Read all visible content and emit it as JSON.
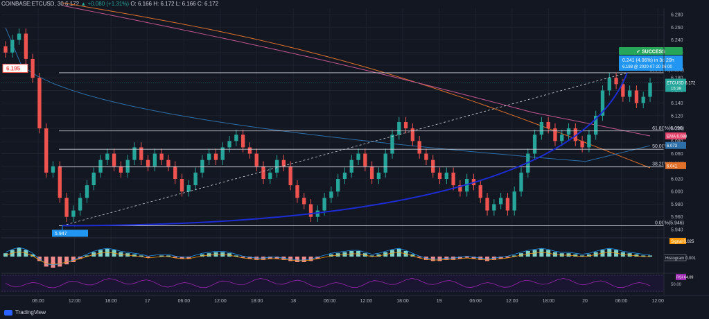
{
  "header": {
    "symbol": "COINBASE:ETCUSD, 30",
    "last": "6.172",
    "change": "+0.080 (+1.31%)",
    "ohlc": "O: 6.166  H: 6.172  L: 6.166  C: 6.172"
  },
  "footer": {
    "brand": "TradingView"
  },
  "colors": {
    "up": "#26a69a",
    "down": "#ef5350",
    "bg": "#131722",
    "accent": "#2962ff"
  },
  "chart_data": {
    "type": "candlestick",
    "symbol": "ETCUSD",
    "ylim": [
      5.93,
      6.29
    ],
    "yticks": [
      "6.280",
      "6.260",
      "6.240",
      "6.220",
      "6.200",
      "6.180",
      "6.160",
      "6.140",
      "6.120",
      "6.100",
      "6.080",
      "6.060",
      "6.040",
      "6.020",
      "6.000",
      "5.980",
      "5.960",
      "5.940"
    ],
    "xticks": [
      "06:00",
      "12:00",
      "18:00",
      "17",
      "06:00",
      "12:00",
      "18:00",
      "18",
      "06:00",
      "12:00",
      "18:00",
      "19",
      "06:00",
      "12:00",
      "18:00",
      "20",
      "06:00",
      "12:00"
    ],
    "close": [
      6.22,
      6.24,
      6.25,
      6.21,
      6.18,
      6.1,
      6.03,
      6.04,
      5.99,
      5.96,
      5.97,
      5.99,
      6.01,
      6.03,
      6.05,
      6.06,
      6.04,
      6.03,
      6.05,
      6.07,
      6.05,
      6.04,
      6.06,
      6.05,
      6.04,
      6.02,
      6.0,
      6.01,
      6.03,
      6.05,
      6.06,
      6.05,
      6.07,
      6.08,
      6.09,
      6.07,
      6.06,
      6.04,
      6.02,
      6.03,
      6.05,
      6.04,
      6.01,
      5.99,
      5.98,
      5.96,
      5.97,
      5.99,
      6.0,
      6.02,
      6.03,
      6.05,
      6.06,
      6.04,
      6.02,
      6.03,
      6.06,
      6.09,
      6.11,
      6.1,
      6.08,
      6.06,
      6.05,
      6.03,
      6.02,
      6.03,
      6.01,
      6.0,
      6.02,
      6.01,
      5.99,
      5.97,
      5.98,
      5.99,
      5.97,
      6.0,
      6.03,
      6.06,
      6.09,
      6.11,
      6.1,
      6.08,
      6.09,
      6.1,
      6.08,
      6.07,
      6.09,
      6.12,
      6.16,
      6.18,
      6.17,
      6.15,
      6.16,
      6.14,
      6.15,
      6.172
    ],
    "ema": {
      "label": "EMA",
      "value": "6.088"
    },
    "ma_blue": {
      "value": "6.073"
    },
    "ma_orange": {
      "value": "6.041"
    },
    "price_label": {
      "symbol": "ETCUSD",
      "value": "6.172",
      "countdown": "15:39"
    },
    "left_marker": "6.195",
    "fibonacci": [
      {
        "label": "100.00%(6.188)",
        "value": 6.188
      },
      {
        "label": "61.80%(6.096)",
        "value": 6.096
      },
      {
        "label": "50.00%(6.067)",
        "value": 6.067
      },
      {
        "label": "38.20%(6.039)",
        "value": 6.039
      },
      {
        "label": "0.00%(5.946)",
        "value": 5.946
      }
    ],
    "projection": {
      "status": "SUCCESS",
      "line1": "0.241 (4.06%) in 3d 20h",
      "line2": "6.188 @ 2020-07-20 06:00",
      "start_label": "5.947"
    },
    "macd": {
      "signal_label": "Signal",
      "signal_value": "0.025",
      "hist_label": "Histogram",
      "hist_value": "0.001",
      "histogram": [
        0.3,
        0.6,
        0.8,
        0.6,
        0.2,
        -0.4,
        -0.9,
        -1.0,
        -0.9,
        -0.7,
        -0.5,
        -0.2,
        0.1,
        0.4,
        0.6,
        0.7,
        0.6,
        0.4,
        0.3,
        0.2,
        0.1,
        -0.1,
        0.0,
        0.1,
        0.1,
        -0.1,
        -0.2,
        -0.2,
        0.0,
        0.2,
        0.3,
        0.4,
        0.4,
        0.3,
        0.1,
        -0.1,
        -0.2,
        -0.3,
        -0.3,
        -0.2,
        -0.2,
        -0.3,
        -0.4,
        -0.5,
        -0.5,
        -0.4,
        -0.2,
        0.0,
        0.2,
        0.3,
        0.4,
        0.5,
        0.5,
        0.3,
        0.1,
        0.2,
        0.4,
        0.6,
        0.7,
        0.5,
        0.2,
        -0.1,
        -0.3,
        -0.4,
        -0.4,
        -0.3,
        -0.3,
        -0.2,
        -0.1,
        -0.2,
        -0.3,
        -0.4,
        -0.3,
        -0.2,
        -0.1,
        0.1,
        0.3,
        0.5,
        0.6,
        0.7,
        0.6,
        0.4,
        0.3,
        0.3,
        0.2,
        0.1,
        0.2,
        0.4,
        0.6,
        0.7,
        0.6,
        0.4,
        0.3,
        0.2,
        0.1,
        0.1
      ]
    },
    "rsi": {
      "label": "RSI",
      "value": "64.09",
      "ticks": [
        "50.00"
      ]
    }
  }
}
